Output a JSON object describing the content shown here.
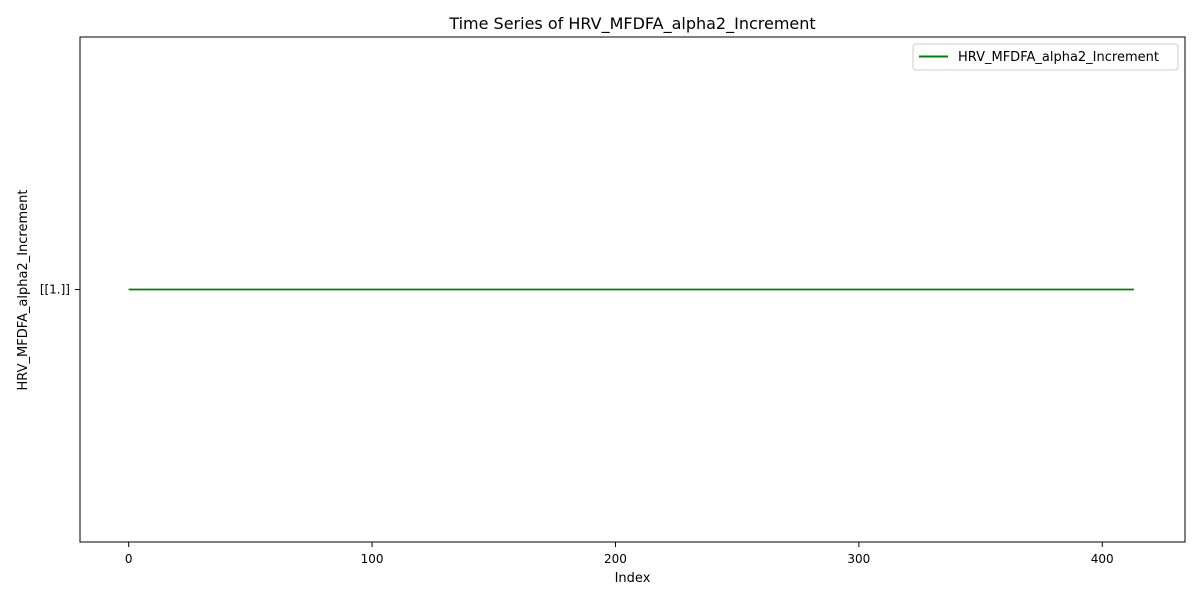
{
  "chart_data": {
    "type": "line",
    "title": "Time Series of HRV_MFDFA_alpha2_Increment",
    "xlabel": "Index",
    "ylabel": "HRV_MFDFA_alpha2_Increment",
    "xlim": [
      -20,
      434
    ],
    "x_ticks": [
      0,
      100,
      200,
      300,
      400
    ],
    "y_tick_labels": [
      "[[1.]]"
    ],
    "grid": false,
    "legend_position": "top-right",
    "series": [
      {
        "name": "HRV_MFDFA_alpha2_Increment",
        "color": "#008000",
        "x": [
          0,
          413
        ],
        "y": [
          1,
          1
        ]
      }
    ]
  }
}
